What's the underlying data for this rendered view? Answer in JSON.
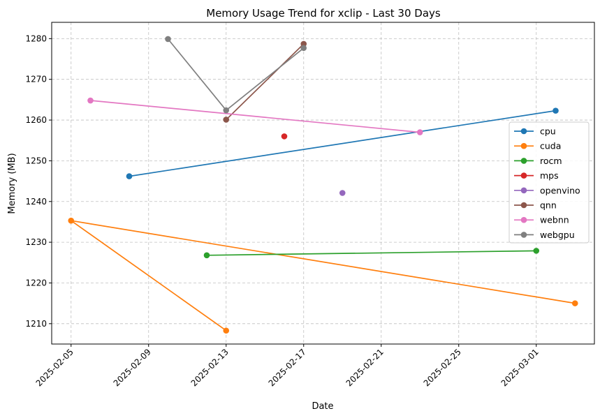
{
  "chart_data": {
    "type": "line",
    "title": "Memory Usage Trend for xclip - Last 30 Days",
    "xlabel": "Date",
    "ylabel": "Memory (MB)",
    "x_ticks": [
      "2025-02-05",
      "2025-02-09",
      "2025-02-13",
      "2025-02-17",
      "2025-02-21",
      "2025-02-25",
      "2025-03-01"
    ],
    "y_ticks": [
      1210,
      1220,
      1230,
      1240,
      1250,
      1260,
      1270,
      1280
    ],
    "xlim": [
      "2025-02-04",
      "2025-03-04"
    ],
    "ylim": [
      1205,
      1284
    ],
    "grid": true,
    "legend_position": "center-right",
    "series": [
      {
        "name": "cpu",
        "color": "#1f77b4",
        "points": [
          {
            "x": "2025-02-08",
            "y": 1246.2
          },
          {
            "x": "2025-03-02",
            "y": 1262.3
          }
        ]
      },
      {
        "name": "cuda",
        "color": "#ff7f0e",
        "points": [
          {
            "x": "2025-02-13",
            "y": 1208.3
          },
          {
            "x": "2025-02-05",
            "y": 1235.3
          },
          {
            "x": "2025-03-03",
            "y": 1215.0
          }
        ]
      },
      {
        "name": "rocm",
        "color": "#2ca02c",
        "points": [
          {
            "x": "2025-02-12",
            "y": 1226.8
          },
          {
            "x": "2025-03-01",
            "y": 1227.9
          }
        ]
      },
      {
        "name": "mps",
        "color": "#d62728",
        "points": [
          {
            "x": "2025-02-16",
            "y": 1256.0
          }
        ]
      },
      {
        "name": "openvino",
        "color": "#9467bd",
        "points": [
          {
            "x": "2025-02-19",
            "y": 1242.1
          }
        ]
      },
      {
        "name": "qnn",
        "color": "#8c564b",
        "points": [
          {
            "x": "2025-02-13",
            "y": 1260.1
          },
          {
            "x": "2025-02-17",
            "y": 1278.7
          }
        ]
      },
      {
        "name": "webnn",
        "color": "#e377c2",
        "points": [
          {
            "x": "2025-02-06",
            "y": 1264.8
          },
          {
            "x": "2025-02-23",
            "y": 1257.0
          }
        ]
      },
      {
        "name": "webgpu",
        "color": "#7f7f7f",
        "points": [
          {
            "x": "2025-02-10",
            "y": 1279.9
          },
          {
            "x": "2025-02-13",
            "y": 1262.4
          },
          {
            "x": "2025-02-17",
            "y": 1277.7
          }
        ]
      }
    ]
  }
}
